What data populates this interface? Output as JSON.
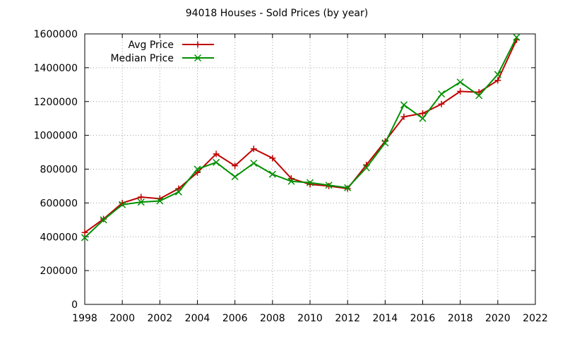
{
  "chart_data": {
    "type": "line",
    "title": "94018 Houses - Sold Prices (by year)",
    "xlabel": "",
    "ylabel": "",
    "xlim": [
      1998,
      2022
    ],
    "ylim": [
      0,
      1600000
    ],
    "xticks": [
      1998,
      2000,
      2002,
      2004,
      2006,
      2008,
      2010,
      2012,
      2014,
      2016,
      2018,
      2020,
      2022
    ],
    "yticks": [
      0,
      200000,
      400000,
      600000,
      800000,
      1000000,
      1200000,
      1400000,
      1600000
    ],
    "grid": true,
    "legend_position": "top-left",
    "x": [
      1998,
      1999,
      2000,
      2001,
      2002,
      2003,
      2004,
      2005,
      2006,
      2007,
      2008,
      2009,
      2010,
      2011,
      2012,
      2013,
      2014,
      2015,
      2016,
      2017,
      2018,
      2019,
      2020,
      2021
    ],
    "series": [
      {
        "name": "Avg Price",
        "color": "#c00000",
        "marker": "plus",
        "values": [
          425000,
          505000,
          600000,
          635000,
          625000,
          685000,
          780000,
          890000,
          820000,
          920000,
          865000,
          745000,
          710000,
          700000,
          685000,
          825000,
          965000,
          1110000,
          1130000,
          1185000,
          1260000,
          1255000,
          1325000,
          1565000
        ]
      },
      {
        "name": "Median Price",
        "color": "#009000",
        "marker": "cross",
        "values": [
          395000,
          500000,
          590000,
          605000,
          612000,
          665000,
          800000,
          840000,
          755000,
          835000,
          770000,
          728000,
          720000,
          705000,
          690000,
          808000,
          955000,
          1180000,
          1100000,
          1245000,
          1315000,
          1235000,
          1360000,
          1580000
        ]
      }
    ]
  }
}
